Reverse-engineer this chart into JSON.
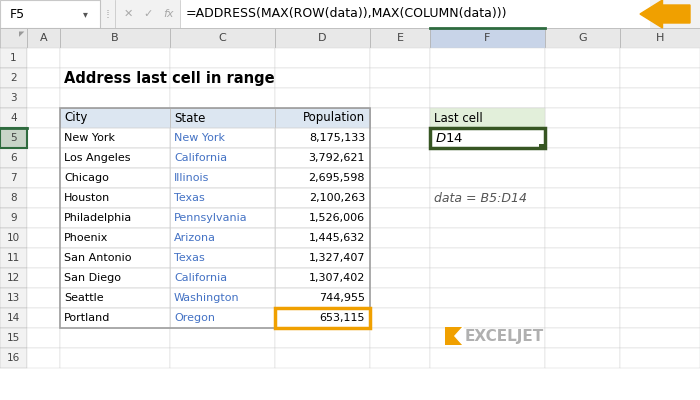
{
  "title": "Address last cell in range",
  "formula_bar_cell": "F5",
  "formula_bar_text": "=ADDRESS(MAX(ROW(data)),MAX(COLUMN(data)))",
  "col_headers": [
    "A",
    "B",
    "C",
    "D",
    "E",
    "F",
    "G",
    "H"
  ],
  "row_headers": [
    "1",
    "2",
    "3",
    "4",
    "5",
    "6",
    "7",
    "8",
    "9",
    "10",
    "11",
    "12",
    "13",
    "14",
    "15",
    "16"
  ],
  "table_headers": [
    "City",
    "State",
    "Population"
  ],
  "cities": [
    "New York",
    "Los Angeles",
    "Chicago",
    "Houston",
    "Philadelphia",
    "Phoenix",
    "San Antonio",
    "San Diego",
    "Seattle",
    "Portland"
  ],
  "states": [
    "New York",
    "California",
    "Illinois",
    "Texas",
    "Pennsylvania",
    "Arizona",
    "Texas",
    "California",
    "Washington",
    "Oregon"
  ],
  "populations": [
    "8,175,133",
    "3,792,621",
    "2,695,598",
    "2,100,263",
    "1,526,006",
    "1,445,632",
    "1,327,407",
    "1,307,402",
    "744,955",
    "653,115"
  ],
  "last_cell_label": "Last cell",
  "last_cell_value": "$D$14",
  "data_note": "data = B5:D14",
  "bg_color": "#ffffff",
  "header_row_color": "#dce6f1",
  "formula_bar_bg": "#f2f2f2",
  "col_header_bg": "#e8e8e8",
  "row_header_bg": "#e8e8e8",
  "active_col_header_bg": "#c8d4e8",
  "active_col_header_border": "#2e6b3e",
  "last_cell_box_color": "#375623",
  "last_cell_header_fill": "#e2efda",
  "portland_highlight": "#f0a000",
  "arrow_color": "#f0a000",
  "state_color": "#4472c4",
  "exceljet_text_color": "#b0b0b0",
  "exceljet_icon_color": "#f0a000",
  "note_color": "#555555",
  "row_num_bg": "#f2f2f2",
  "col_header_border": "#b0b0b0",
  "cell_border": "#d0d0d0",
  "table_outer_border": "#a0a0a0"
}
